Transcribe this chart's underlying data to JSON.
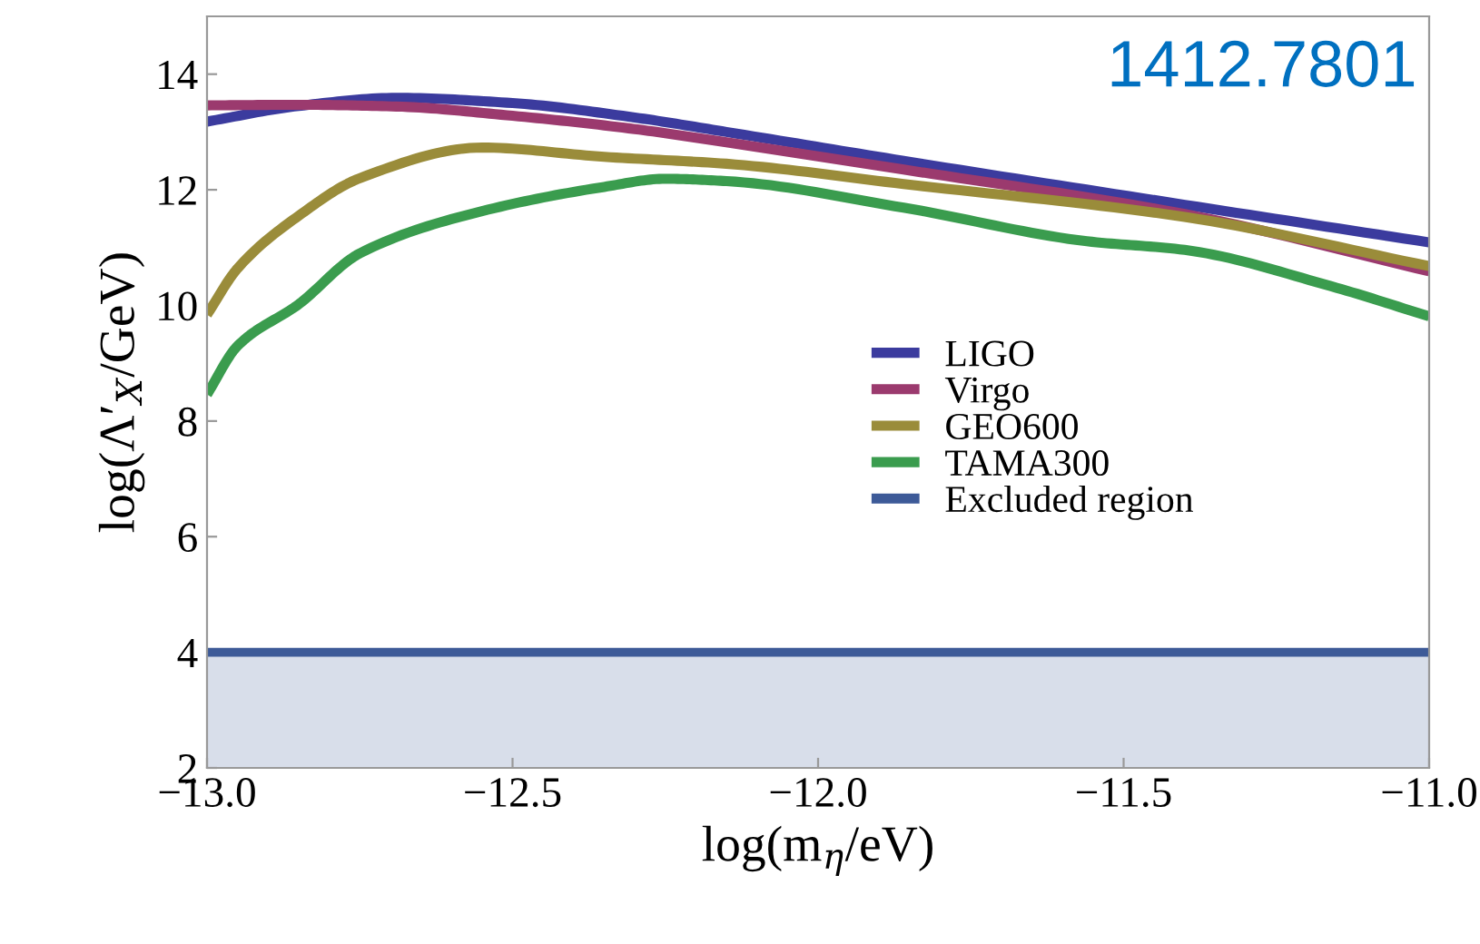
{
  "chart_data": {
    "type": "line",
    "xlabel": "log(m$_{η}$/eV)",
    "ylabel": "log(Λ′$_{X}$/GeV)",
    "annotations": [
      "1412.7801"
    ],
    "xlim": [
      -13.0,
      -11.0
    ],
    "xticks": [
      {
        "value": -13.0,
        "label": "−13.0"
      },
      {
        "value": -12.5,
        "label": "−12.5"
      },
      {
        "value": -12.0,
        "label": "−12.0"
      },
      {
        "value": -11.5,
        "label": "−11.5"
      },
      {
        "value": -11.0,
        "label": "−11.0"
      }
    ],
    "ylim": [
      2,
      15
    ],
    "yticks": [
      2,
      4,
      6,
      8,
      10,
      12,
      14
    ],
    "grid": false,
    "legend": "center",
    "marker": "none",
    "line_style": "solid",
    "series": [
      {
        "name": "LIGO",
        "color": "#3b3b9e",
        "x": [
          -13.0,
          -12.85,
          -12.69,
          -12.5,
          -12.3,
          -12.15,
          -11.86,
          -11.4,
          -11.0
        ],
        "values": [
          13.18,
          13.45,
          13.59,
          13.5,
          13.25,
          13.0,
          12.5,
          11.74,
          11.09
        ]
      },
      {
        "name": "Virgo",
        "color": "#9b3a6e",
        "x": [
          -13.0,
          -12.85,
          -12.69,
          -12.5,
          -12.3,
          -12.15,
          -11.86,
          -11.4,
          -11.0
        ],
        "values": [
          13.46,
          13.47,
          13.44,
          13.28,
          13.05,
          12.82,
          12.35,
          11.58,
          10.59
        ]
      },
      {
        "name": "GEO600",
        "color": "#9a8c3a",
        "x": [
          -13.0,
          -12.95,
          -12.85,
          -12.75,
          -12.55,
          -12.35,
          -12.15,
          -11.86,
          -11.4,
          -11.0
        ],
        "values": [
          9.84,
          10.64,
          11.55,
          12.2,
          12.73,
          12.57,
          12.45,
          12.1,
          11.53,
          10.68
        ]
      },
      {
        "name": "TAMA300",
        "color": "#3a9c4e",
        "x": [
          -13.0,
          -12.95,
          -12.85,
          -12.75,
          -12.55,
          -12.35,
          -12.25,
          -12.15,
          -11.86,
          -11.56,
          -11.4,
          -11.16,
          -11.0
        ],
        "values": [
          8.46,
          9.3,
          10.02,
          10.9,
          11.63,
          12.05,
          12.19,
          12.15,
          11.69,
          11.11,
          10.96,
          10.33,
          9.81
        ]
      }
    ],
    "ref_lines": [
      {
        "axis": "y",
        "value": 4,
        "label": "Excluded region",
        "color": "#3d5a98"
      }
    ],
    "bands": [
      {
        "axis": "y",
        "from": 2,
        "to": 4,
        "color": "#d8deea"
      }
    ]
  }
}
